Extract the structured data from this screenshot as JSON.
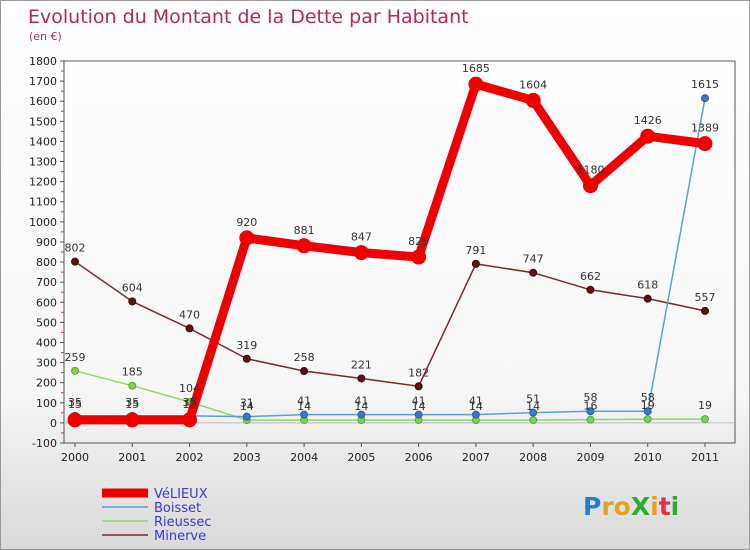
{
  "chart_data": {
    "type": "line",
    "title": "Evolution du Montant de la Dette par Habitant",
    "subtitle": "(en €)",
    "x": [
      "2000",
      "2001",
      "2002",
      "2003",
      "2004",
      "2005",
      "2006",
      "2007",
      "2008",
      "2009",
      "2010",
      "2011"
    ],
    "ylim": [
      -100,
      1800
    ],
    "yticks": [
      -100,
      0,
      100,
      200,
      300,
      400,
      500,
      600,
      700,
      800,
      900,
      1000,
      1100,
      1200,
      1300,
      1400,
      1500,
      1600,
      1700,
      1800
    ],
    "grid": false,
    "legend_position": "bottom-left",
    "series": [
      {
        "name": "Minerve",
        "color": "#6b1a1a",
        "values": [
          802,
          604,
          470,
          319,
          258,
          221,
          182,
          791,
          747,
          662,
          618,
          557
        ],
        "labels": [
          "802",
          "604",
          "470",
          "319",
          "258",
          "221",
          "182",
          "791",
          "747",
          "662",
          "618",
          "557"
        ]
      },
      {
        "name": "Rieussec",
        "color": "#8fd86a",
        "values": [
          259,
          185,
          104,
          14,
          14,
          14,
          14,
          14,
          14,
          16,
          19,
          19
        ],
        "labels": [
          "259",
          "185",
          "104",
          "14",
          "14",
          "14",
          "14",
          "14",
          "14",
          "16",
          "19",
          "19"
        ]
      },
      {
        "name": "Boisset",
        "color": "#5c9fd6",
        "values": [
          35,
          35,
          35,
          31,
          41,
          41,
          41,
          41,
          51,
          58,
          58,
          1615
        ],
        "labels": [
          "35",
          "35",
          "35",
          "31",
          "41",
          "41",
          "41",
          "41",
          "51",
          "58",
          "58",
          "1615"
        ]
      },
      {
        "name": "VéLIEUX",
        "color": "#ee0000",
        "values": [
          15,
          15,
          15,
          920,
          881,
          847,
          825,
          1685,
          1604,
          1180,
          1426,
          1389
        ],
        "labels": [
          "15",
          "15",
          "15",
          "920",
          "881",
          "847",
          "825",
          "1685",
          "1604",
          "1180",
          "1426",
          "1389"
        ]
      }
    ],
    "legend_order": [
      "VéLIEUX",
      "Boisset",
      "Rieussec",
      "Minerve"
    ]
  },
  "logo": {
    "text": "ProXiti",
    "letters": [
      "P",
      "r",
      "o",
      "X",
      "i",
      "t",
      "i"
    ],
    "colors": [
      "#1e7fd4",
      "#e8a020",
      "#e8a020",
      "#2ea82e",
      "#e8a020",
      "#e0304a",
      "#2ea82e"
    ]
  }
}
